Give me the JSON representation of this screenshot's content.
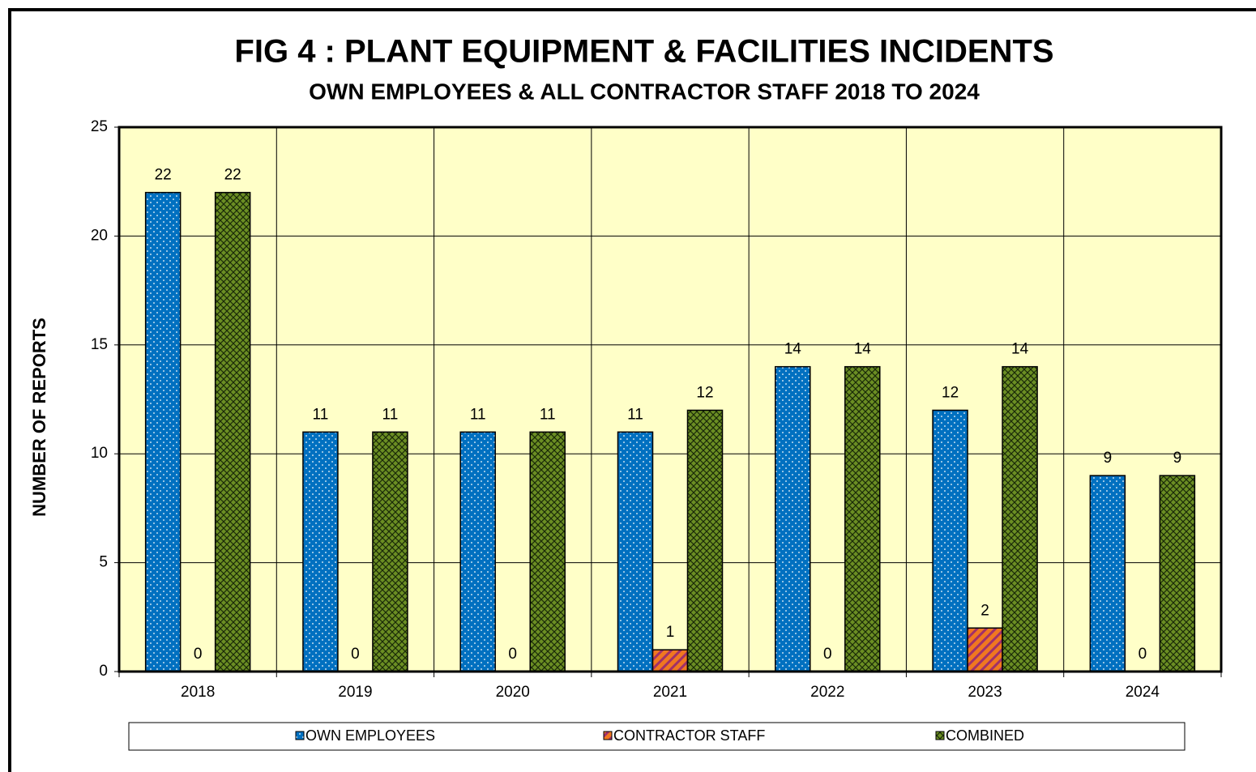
{
  "chart_data": {
    "type": "bar",
    "title": "FIG 4 : PLANT EQUIPMENT & FACILITIES INCIDENTS",
    "subtitle": "OWN EMPLOYEES & ALL CONTRACTOR STAFF 2018 TO 2024",
    "y_label": "NUMBER OF REPORTS",
    "categories": [
      "2018",
      "2019",
      "2020",
      "2021",
      "2022",
      "2023",
      "2024"
    ],
    "series": [
      {
        "name": "OWN EMPLOYEES",
        "color": "#0070c0",
        "values": [
          22,
          11,
          11,
          11,
          14,
          12,
          9
        ]
      },
      {
        "name": "CONTRACTOR STAFF",
        "color": "#f07820",
        "values": [
          0,
          0,
          0,
          1,
          0,
          2,
          0
        ]
      },
      {
        "name": "COMBINED",
        "color": "#6b8e23",
        "values": [
          22,
          11,
          11,
          12,
          14,
          14,
          9
        ]
      }
    ],
    "ylim": [
      0,
      25
    ],
    "yticks": [
      0,
      5,
      10,
      15,
      20,
      25
    ],
    "grid": true,
    "legend": "bottom"
  }
}
